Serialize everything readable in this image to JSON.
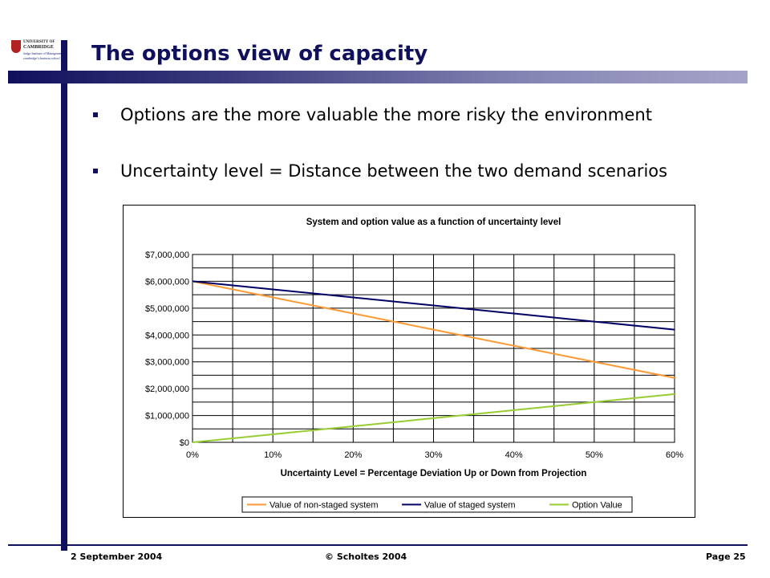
{
  "logo": {
    "line1": "UNIVERSITY OF",
    "line2": "CAMBRIDGE",
    "line3": "Judge Institute of Management",
    "line4": "cambridge's business school"
  },
  "slide": {
    "title": "The options view of capacity",
    "bullets": [
      "Options are the more valuable the more risky the environment",
      "Uncertainty level = Distance between the two demand scenarios"
    ]
  },
  "footer": {
    "date": "2 September 2004",
    "copyright": "© Scholtes 2004",
    "page": "Page 25"
  },
  "colors": {
    "accent": "#10105c",
    "non_staged": "#ff9933",
    "staged": "#000066",
    "option": "#99cc33"
  },
  "chart_data": {
    "type": "line",
    "title": "System and option value as a function of uncertainty level",
    "xlabel": "Uncertainty Level = Percentage Deviation Up or Down from Projection",
    "ylabel": "",
    "x": [
      0,
      10,
      20,
      30,
      40,
      50,
      60
    ],
    "x_tick_labels": [
      "0%",
      "10%",
      "20%",
      "30%",
      "40%",
      "50%",
      "60%"
    ],
    "y_tick_labels": [
      "$0",
      "$1,000,000",
      "$2,000,000",
      "$3,000,000",
      "$4,000,000",
      "$5,000,000",
      "$6,000,000",
      "$7,000,000"
    ],
    "xlim": [
      0,
      60
    ],
    "ylim": [
      0,
      7000000
    ],
    "grid": true,
    "legend_position": "bottom",
    "series": [
      {
        "name": "Value of non-staged system",
        "color": "#ff9933",
        "values": [
          6000000,
          5400000,
          4800000,
          4200000,
          3600000,
          3000000,
          2400000
        ]
      },
      {
        "name": "Value of staged system",
        "color": "#000066",
        "values": [
          6000000,
          5700000,
          5400000,
          5100000,
          4800000,
          4500000,
          4200000
        ]
      },
      {
        "name": "Option Value",
        "color": "#99cc33",
        "values": [
          0,
          300000,
          600000,
          900000,
          1200000,
          1500000,
          1800000
        ]
      }
    ]
  }
}
